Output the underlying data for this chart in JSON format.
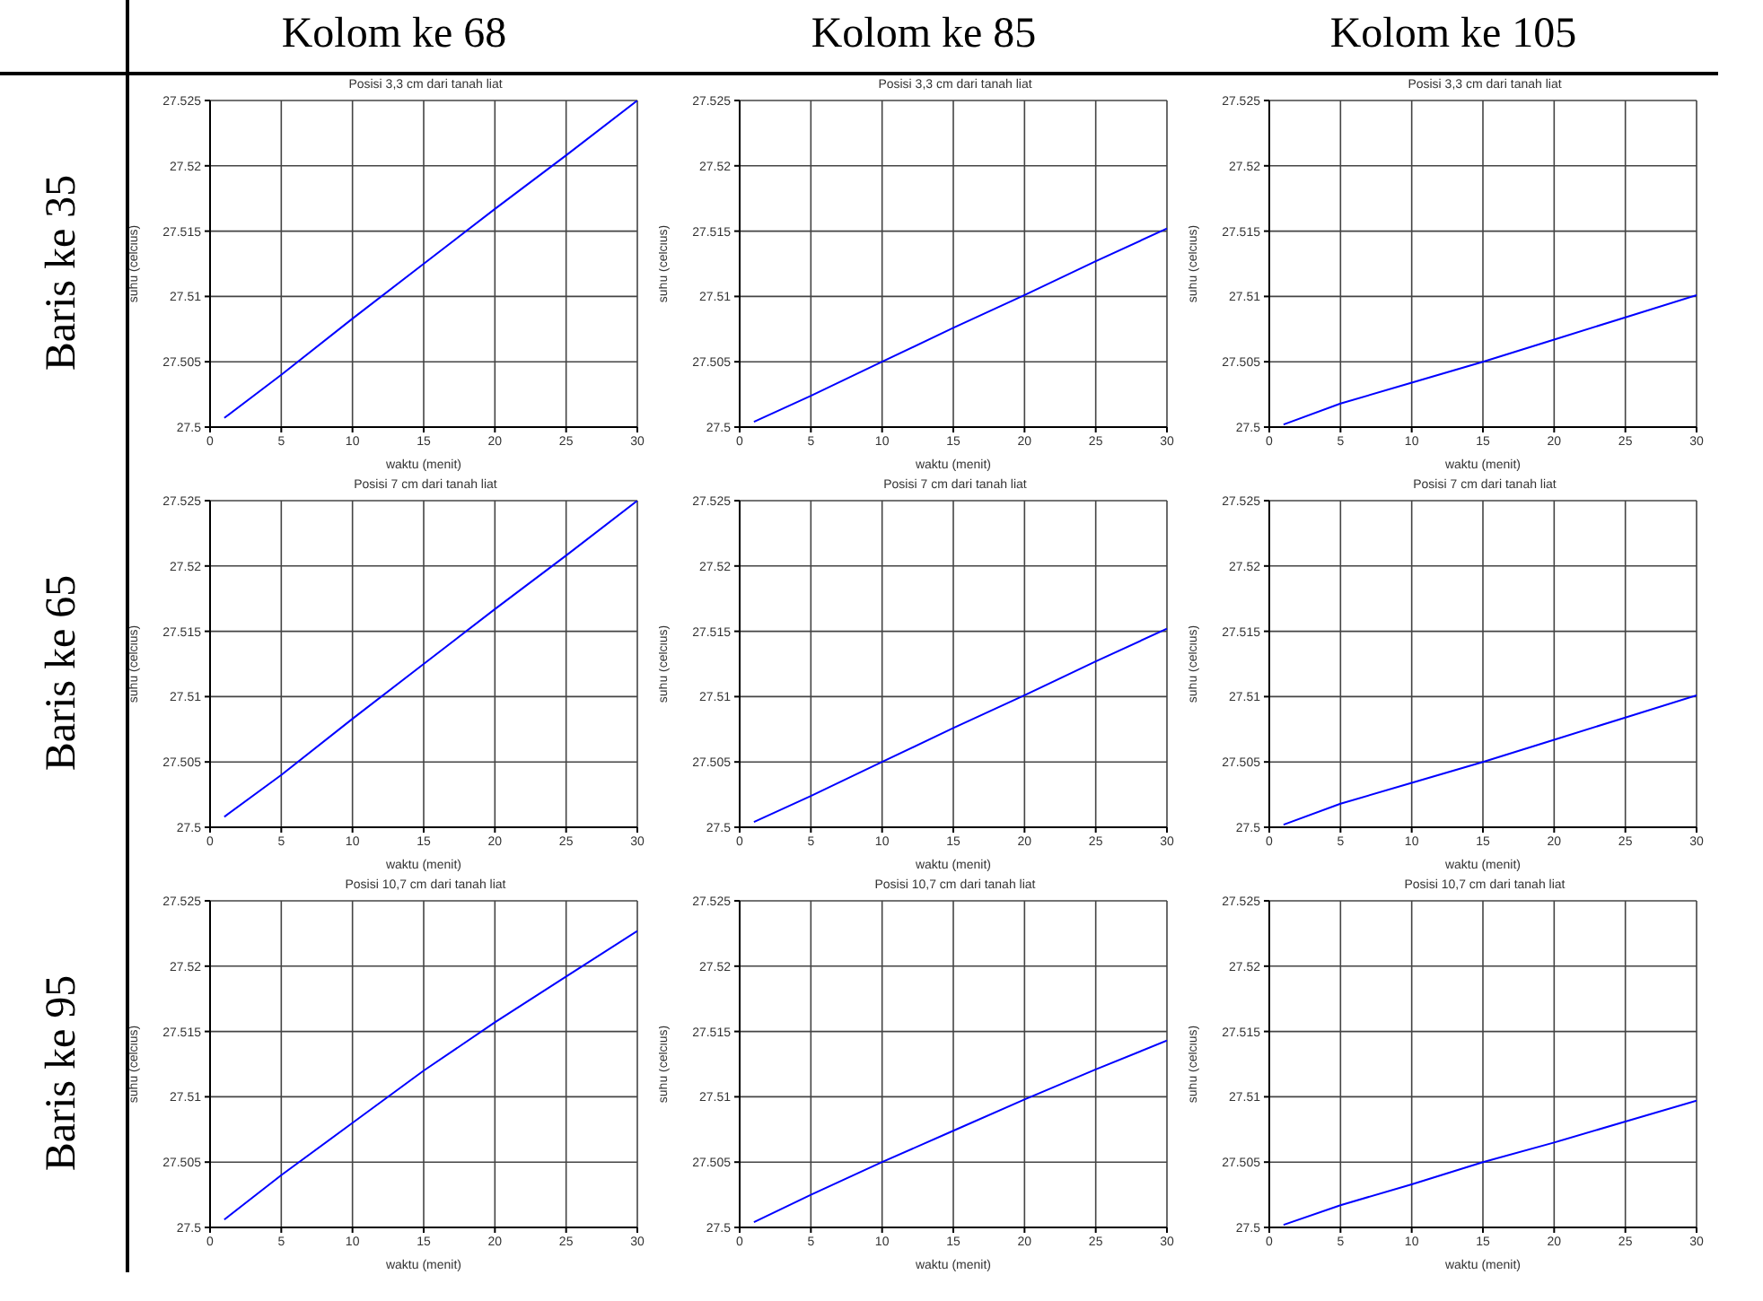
{
  "chart_data": [
    {
      "type": "line",
      "title": "Posisi 3,3 cm dari tanah liat",
      "xlabel": "waktu (menit)",
      "ylabel": "suhu (celcius)",
      "x": [
        1,
        5,
        10,
        15,
        20,
        25,
        30
      ],
      "values": [
        27.5007,
        27.504,
        27.5083,
        27.5125,
        27.5167,
        27.5208,
        27.525
      ],
      "color": "#0000ff",
      "xlim": [
        0,
        30
      ],
      "ylim": [
        27.5,
        27.525
      ],
      "xticks": [
        0,
        5,
        10,
        15,
        20,
        25,
        30
      ],
      "yticks": [
        27.5,
        27.505,
        27.51,
        27.515,
        27.52,
        27.525
      ],
      "grid": true,
      "annotations": [
        "Kolom ke 68",
        "Baris ke 35"
      ]
    },
    {
      "type": "line",
      "title": "Posisi 3,3 cm dari tanah liat",
      "xlabel": "waktu (menit)",
      "ylabel": "suhu (celcius)",
      "x": [
        1,
        5,
        10,
        15,
        20,
        25,
        30
      ],
      "values": [
        27.5004,
        27.5024,
        27.505,
        27.5076,
        27.5101,
        27.5127,
        27.5152
      ],
      "color": "#0000ff",
      "xlim": [
        0,
        30
      ],
      "ylim": [
        27.5,
        27.525
      ],
      "xticks": [
        0,
        5,
        10,
        15,
        20,
        25,
        30
      ],
      "yticks": [
        27.5,
        27.505,
        27.51,
        27.515,
        27.52,
        27.525
      ],
      "grid": true,
      "annotations": [
        "Kolom ke 85"
      ]
    },
    {
      "type": "line",
      "title": "Posisi 3,3 cm dari tanah liat",
      "xlabel": "waktu (menit)",
      "ylabel": "suhu (celcius)",
      "x": [
        1,
        5,
        10,
        15,
        20,
        25,
        30
      ],
      "values": [
        27.5002,
        27.5018,
        27.5034,
        27.505,
        27.5067,
        27.5084,
        27.5101
      ],
      "color": "#0000ff",
      "xlim": [
        0,
        30
      ],
      "ylim": [
        27.5,
        27.525
      ],
      "xticks": [
        0,
        5,
        10,
        15,
        20,
        25,
        30
      ],
      "yticks": [
        27.5,
        27.505,
        27.51,
        27.515,
        27.52,
        27.525
      ],
      "grid": true,
      "annotations": [
        "Kolom ke 105"
      ]
    },
    {
      "type": "line",
      "title": "Posisi 7 cm dari tanah liat",
      "xlabel": "waktu (menit)",
      "ylabel": "suhu (celcius)",
      "x": [
        1,
        5,
        10,
        15,
        20,
        25,
        30
      ],
      "values": [
        27.5008,
        27.504,
        27.5083,
        27.5125,
        27.5167,
        27.5208,
        27.525
      ],
      "color": "#0000ff",
      "xlim": [
        0,
        30
      ],
      "ylim": [
        27.5,
        27.525
      ],
      "xticks": [
        0,
        5,
        10,
        15,
        20,
        25,
        30
      ],
      "yticks": [
        27.5,
        27.505,
        27.51,
        27.515,
        27.52,
        27.525
      ],
      "grid": true,
      "annotations": [
        "Baris ke 65"
      ]
    },
    {
      "type": "line",
      "title": "Posisi 7 cm dari tanah liat",
      "xlabel": "waktu (menit)",
      "ylabel": "suhu (celcius)",
      "x": [
        1,
        5,
        10,
        15,
        20,
        25,
        30
      ],
      "values": [
        27.5004,
        27.5024,
        27.505,
        27.5076,
        27.5101,
        27.5127,
        27.5152
      ],
      "color": "#0000ff",
      "xlim": [
        0,
        30
      ],
      "ylim": [
        27.5,
        27.525
      ],
      "xticks": [
        0,
        5,
        10,
        15,
        20,
        25,
        30
      ],
      "yticks": [
        27.5,
        27.505,
        27.51,
        27.515,
        27.52,
        27.525
      ],
      "grid": true
    },
    {
      "type": "line",
      "title": "Posisi 7 cm dari tanah liat",
      "xlabel": "waktu (menit)",
      "ylabel": "suhu (celcius)",
      "x": [
        1,
        5,
        10,
        15,
        20,
        25,
        30
      ],
      "values": [
        27.5002,
        27.5018,
        27.5034,
        27.505,
        27.5067,
        27.5084,
        27.5101
      ],
      "color": "#0000ff",
      "xlim": [
        0,
        30
      ],
      "ylim": [
        27.5,
        27.525
      ],
      "xticks": [
        0,
        5,
        10,
        15,
        20,
        25,
        30
      ],
      "yticks": [
        27.5,
        27.505,
        27.51,
        27.515,
        27.52,
        27.525
      ],
      "grid": true
    },
    {
      "type": "line",
      "title": "Posisi 10,7 cm dari tanah liat",
      "xlabel": "waktu (menit)",
      "ylabel": "suhu (celcius)",
      "x": [
        1,
        5,
        10,
        15,
        20,
        25,
        30
      ],
      "values": [
        27.5006,
        27.504,
        27.508,
        27.512,
        27.5157,
        27.5192,
        27.5227
      ],
      "color": "#0000ff",
      "xlim": [
        0,
        30
      ],
      "ylim": [
        27.5,
        27.525
      ],
      "xticks": [
        0,
        5,
        10,
        15,
        20,
        25,
        30
      ],
      "yticks": [
        27.5,
        27.505,
        27.51,
        27.515,
        27.52,
        27.525
      ],
      "grid": true,
      "annotations": [
        "Baris ke 95"
      ]
    },
    {
      "type": "line",
      "title": "Posisi 10,7 cm dari tanah liat",
      "xlabel": "waktu (menit)",
      "ylabel": "suhu (celcius)",
      "x": [
        1,
        5,
        10,
        15,
        20,
        25,
        30
      ],
      "values": [
        27.5004,
        27.5025,
        27.505,
        27.5074,
        27.5098,
        27.5121,
        27.5143
      ],
      "color": "#0000ff",
      "xlim": [
        0,
        30
      ],
      "ylim": [
        27.5,
        27.525
      ],
      "xticks": [
        0,
        5,
        10,
        15,
        20,
        25,
        30
      ],
      "yticks": [
        27.5,
        27.505,
        27.51,
        27.515,
        27.52,
        27.525
      ],
      "grid": true
    },
    {
      "type": "line",
      "title": "Posisi 10,7 cm dari tanah liat",
      "xlabel": "waktu (menit)",
      "ylabel": "suhu (celcius)",
      "x": [
        1,
        5,
        10,
        15,
        20,
        25,
        30
      ],
      "values": [
        27.5002,
        27.5017,
        27.5033,
        27.505,
        27.5065,
        27.5081,
        27.5097
      ],
      "color": "#0000ff",
      "xlim": [
        0,
        30
      ],
      "ylim": [
        27.5,
        27.525
      ],
      "xticks": [
        0,
        5,
        10,
        15,
        20,
        25,
        30
      ],
      "yticks": [
        27.5,
        27.505,
        27.51,
        27.515,
        27.52,
        27.525
      ],
      "grid": true
    }
  ]
}
